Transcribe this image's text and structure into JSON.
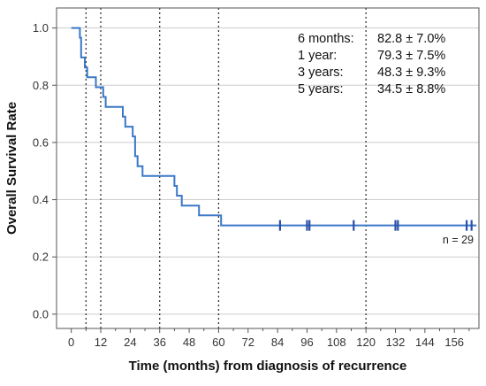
{
  "chart_data": {
    "type": "line",
    "subtype": "kaplan-meier",
    "title": "",
    "xlabel": "Time (months) from diagnosis of recurrence",
    "ylabel": "Overall Survival Rate",
    "xlim": [
      -6,
      166
    ],
    "ylim": [
      -0.05,
      1.07
    ],
    "x_ticks": [
      0,
      12,
      24,
      36,
      48,
      60,
      72,
      84,
      96,
      108,
      120,
      132,
      144,
      156
    ],
    "x_tick_labels": [
      "0",
      "12",
      "24",
      "36",
      "48",
      "60",
      "72",
      "84",
      "96",
      "108",
      "120",
      "132",
      "144",
      "156"
    ],
    "y_ticks": [
      0.0,
      0.2,
      0.4,
      0.6,
      0.8,
      1.0
    ],
    "y_tick_labels": [
      "0.0",
      "0.2",
      "0.4",
      "0.6",
      "0.8",
      "1.0"
    ],
    "grid": {
      "horizontal": true,
      "vertical": false
    },
    "reference_lines_x": [
      6,
      12,
      36,
      60,
      120
    ],
    "series": [
      {
        "color": "#3a78c8",
        "step_points": [
          {
            "x": 0,
            "y": 1.0
          },
          {
            "x": 3.5,
            "y": 0.966
          },
          {
            "x": 4,
            "y": 0.897
          },
          {
            "x": 5.5,
            "y": 0.862
          },
          {
            "x": 6.5,
            "y": 0.828
          },
          {
            "x": 10,
            "y": 0.793
          },
          {
            "x": 13,
            "y": 0.759
          },
          {
            "x": 14,
            "y": 0.724
          },
          {
            "x": 21,
            "y": 0.69
          },
          {
            "x": 22,
            "y": 0.655
          },
          {
            "x": 25,
            "y": 0.621
          },
          {
            "x": 26,
            "y": 0.552
          },
          {
            "x": 27,
            "y": 0.517
          },
          {
            "x": 29,
            "y": 0.483
          },
          {
            "x": 42,
            "y": 0.448
          },
          {
            "x": 43,
            "y": 0.414
          },
          {
            "x": 45,
            "y": 0.379
          },
          {
            "x": 52,
            "y": 0.345
          },
          {
            "x": 61,
            "y": 0.31
          },
          {
            "x": 165,
            "y": 0.31
          }
        ],
        "censor_marks_x": [
          85,
          96,
          97,
          115,
          132,
          133,
          161,
          163
        ]
      }
    ],
    "annotations": [
      {
        "label": "6 months:",
        "value": "82.8 ± 7.0%"
      },
      {
        "label": "1 year:",
        "value": "79.3 ± 7.5%"
      },
      {
        "label": "3 years:",
        "value": "48.3 ± 9.3%"
      },
      {
        "label": "5 years:",
        "value": "34.5 ± 8.8%"
      }
    ],
    "n_label": "n = 29"
  }
}
